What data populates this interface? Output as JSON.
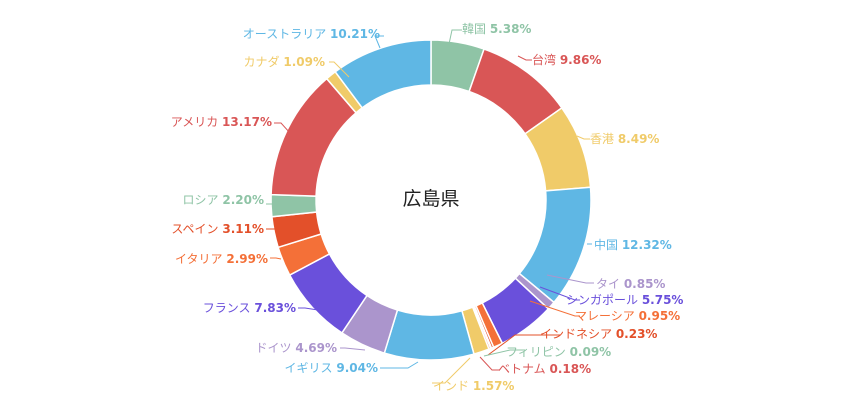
{
  "chart_data": {
    "type": "pie",
    "title": "広島県",
    "colors": {
      "blue": "#5fb7e4",
      "green": "#8fc4a6",
      "red": "#d95656",
      "yellow": "#f0cb69",
      "purple": "#6a50db",
      "lavender": "#ab95cc",
      "orange_red": "#e3502a",
      "orange": "#f47038"
    },
    "slices": [
      {
        "name": "韓国",
        "pct_label": "5.38%",
        "value": 5.38,
        "color": "green"
      },
      {
        "name": "台湾",
        "pct_label": "9.86%",
        "value": 9.86,
        "color": "red"
      },
      {
        "name": "香港",
        "pct_label": "8.49%",
        "value": 8.49,
        "color": "yellow"
      },
      {
        "name": "中国",
        "pct_label": "12.32%",
        "value": 12.32,
        "color": "blue"
      },
      {
        "name": "タイ",
        "pct_label": "0.85%",
        "value": 0.85,
        "color": "lavender"
      },
      {
        "name": "シンガポール",
        "pct_label": "5.75%",
        "value": 5.75,
        "color": "purple"
      },
      {
        "name": "マレーシア",
        "pct_label": "0.95%",
        "value": 0.95,
        "color": "orange"
      },
      {
        "name": "インドネシア",
        "pct_label": "0.23%",
        "value": 0.23,
        "color": "orange_red"
      },
      {
        "name": "フィリピン",
        "pct_label": "0.09%",
        "value": 0.09,
        "color": "green"
      },
      {
        "name": "ベトナム",
        "pct_label": "0.18%",
        "value": 0.18,
        "color": "red"
      },
      {
        "name": "インド",
        "pct_label": "1.57%",
        "value": 1.57,
        "color": "yellow"
      },
      {
        "name": "イギリス",
        "pct_label": "9.04%",
        "value": 9.04,
        "color": "blue"
      },
      {
        "name": "ドイツ",
        "pct_label": "4.69%",
        "value": 4.69,
        "color": "lavender"
      },
      {
        "name": "フランス",
        "pct_label": "7.83%",
        "value": 7.83,
        "color": "purple"
      },
      {
        "name": "イタリア",
        "pct_label": "2.99%",
        "value": 2.99,
        "color": "orange"
      },
      {
        "name": "スペイン",
        "pct_label": "3.11%",
        "value": 3.11,
        "color": "orange_red"
      },
      {
        "name": "ロシア",
        "pct_label": "2.20%",
        "value": 2.2,
        "color": "green"
      },
      {
        "name": "アメリカ",
        "pct_label": "13.17%",
        "value": 13.17,
        "color": "red"
      },
      {
        "name": "カナダ",
        "pct_label": "1.09%",
        "value": 1.09,
        "color": "yellow"
      },
      {
        "name": "オーストラリア",
        "pct_label": "10.21%",
        "value": 10.21,
        "color": "blue"
      }
    ]
  }
}
